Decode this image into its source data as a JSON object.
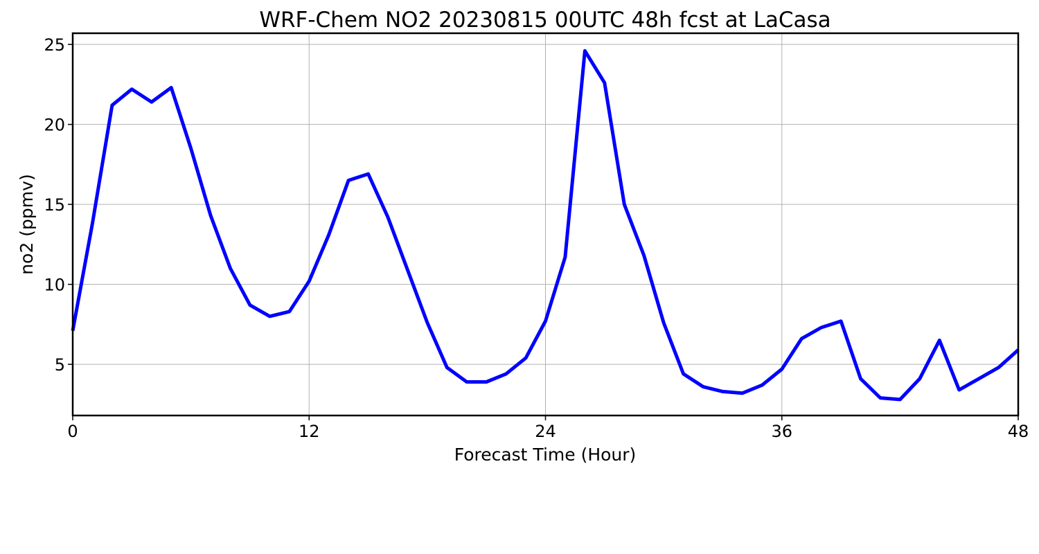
{
  "chart_data": {
    "type": "line",
    "title": "WRF-Chem NO2  20230815 00UTC 48h fcst at LaCasa",
    "xlabel": "Forecast Time (Hour)",
    "ylabel": "no2  (ppmv)",
    "xlim": [
      0,
      48
    ],
    "ylim": [
      1.8,
      25.7
    ],
    "xticks": [
      0,
      12,
      24,
      36,
      48
    ],
    "yticks": [
      5,
      10,
      15,
      20,
      25
    ],
    "grid": true,
    "legend": "none",
    "series": [
      {
        "color": "#0000ff",
        "x": [
          0,
          1,
          2,
          3,
          4,
          5,
          6,
          7,
          8,
          9,
          10,
          11,
          12,
          13,
          14,
          15,
          16,
          17,
          18,
          19,
          20,
          21,
          22,
          23,
          24,
          25,
          26,
          27,
          28,
          29,
          30,
          31,
          32,
          33,
          34,
          35,
          36,
          37,
          38,
          39,
          40,
          41,
          42,
          43,
          44,
          45,
          46,
          47,
          48
        ],
        "values": [
          7.1,
          13.8,
          21.2,
          22.2,
          21.4,
          22.3,
          18.5,
          14.3,
          11.0,
          8.7,
          8.0,
          8.3,
          10.2,
          13.1,
          16.5,
          16.9,
          14.2,
          10.9,
          7.6,
          4.8,
          3.9,
          3.9,
          4.4,
          5.4,
          7.7,
          11.7,
          24.6,
          22.6,
          15.0,
          11.8,
          7.6,
          4.4,
          3.6,
          3.3,
          3.2,
          3.7,
          4.7,
          6.6,
          7.3,
          7.7,
          4.1,
          2.9,
          2.8,
          4.1,
          6.5,
          3.4,
          4.1,
          4.8,
          5.9
        ]
      }
    ]
  }
}
